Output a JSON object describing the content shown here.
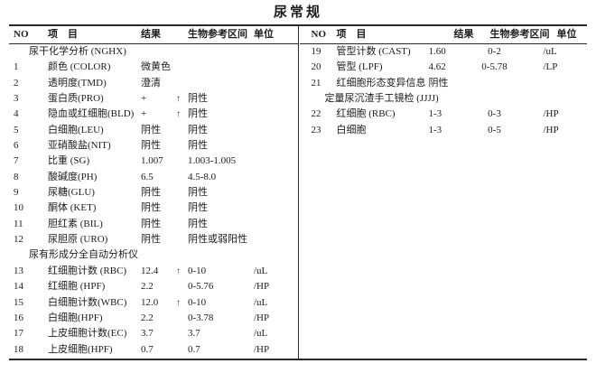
{
  "title": "尿常规",
  "columns": {
    "no": "NO",
    "item": "项　目",
    "result": "结果",
    "reference": "生物参考区间",
    "unit": "单位"
  },
  "left_table": {
    "rows": [
      {
        "section": "尿干化学分析 (NGHX)"
      },
      {
        "no": "1",
        "item": "颜色 (COLOR)",
        "result": "微黄色",
        "flag": "",
        "reference": "",
        "unit": ""
      },
      {
        "no": "2",
        "item": "透明度(TMD)",
        "result": "澄清",
        "flag": "",
        "reference": "",
        "unit": ""
      },
      {
        "no": "3",
        "item": "蛋白质(PRO)",
        "result": "+",
        "flag": "↑",
        "reference": "阴性",
        "unit": ""
      },
      {
        "no": "4",
        "item": "隐血或红细胞(BLD)",
        "result": "+",
        "flag": "↑",
        "reference": "阴性",
        "unit": ""
      },
      {
        "no": "5",
        "item": "白细胞(LEU)",
        "result": "阴性",
        "flag": "",
        "reference": "阴性",
        "unit": ""
      },
      {
        "no": "6",
        "item": "亚硝酸盐(NIT)",
        "result": "阴性",
        "flag": "",
        "reference": "阴性",
        "unit": ""
      },
      {
        "no": "7",
        "item": "比重 (SG)",
        "result": "1.007",
        "flag": "",
        "reference": "1.003-1.005",
        "unit": ""
      },
      {
        "no": "8",
        "item": "酸碱度(PH)",
        "result": "6.5",
        "flag": "",
        "reference": "4.5-8.0",
        "unit": ""
      },
      {
        "no": "9",
        "item": "尿糖(GLU)",
        "result": "阴性",
        "flag": "",
        "reference": "阴性",
        "unit": ""
      },
      {
        "no": "10",
        "item": "酮体 (KET)",
        "result": "阴性",
        "flag": "",
        "reference": "阴性",
        "unit": ""
      },
      {
        "no": "11",
        "item": "胆红素 (BIL)",
        "result": "阴性",
        "flag": "",
        "reference": "阴性",
        "unit": ""
      },
      {
        "no": "12",
        "item": "尿胆原 (URO)",
        "result": "阴性",
        "flag": "",
        "reference": "阴性或弱阳性",
        "unit": ""
      },
      {
        "section": "尿有形成分全自动分析仪"
      },
      {
        "no": "13",
        "item": "红细胞计数 (RBC)",
        "result": "12.4",
        "flag": "↑",
        "reference": "0-10",
        "unit": "/uL"
      },
      {
        "no": "14",
        "item": "红细胞 (HPF)",
        "result": "2.2",
        "flag": "",
        "reference": "0-5.76",
        "unit": "/HP"
      },
      {
        "no": "15",
        "item": "白细胞计数(WBC)",
        "result": "12.0",
        "flag": "↑",
        "reference": "0-10",
        "unit": "/uL"
      },
      {
        "no": "16",
        "item": "白细胞(HPF)",
        "result": "2.2",
        "flag": "",
        "reference": "0-3.78",
        "unit": "/HP"
      },
      {
        "no": "17",
        "item": "上皮细胞计数(EC)",
        "result": "3.7",
        "flag": "",
        "reference": "3.7",
        "unit": "/uL"
      },
      {
        "no": "18",
        "item": "上皮细胞(HPF)",
        "result": "0.7",
        "flag": "",
        "reference": "0.7",
        "unit": "/HP"
      }
    ]
  },
  "right_table": {
    "rows": [
      {
        "no": "19",
        "item": "管型计数 (CAST)",
        "result": "1.60",
        "flag": "",
        "reference": "0-2",
        "unit": "/uL"
      },
      {
        "no": "20",
        "item": "管型 (LPF)",
        "result": "4.62",
        "flag": "",
        "reference": "0-5.78",
        "unit": "/LP"
      },
      {
        "no": "21",
        "item": "红细胞形态变异信息",
        "result": "阴性",
        "flag": "",
        "reference": "",
        "unit": ""
      },
      {
        "section": "定量尿沉渣手工镜检 (JJJJ)"
      },
      {
        "no": "22",
        "item": "红细胞 (RBC)",
        "result": "1-3",
        "flag": "",
        "reference": "0-3",
        "unit": "/HP"
      },
      {
        "no": "23",
        "item": "白细胞",
        "result": "1-3",
        "flag": "",
        "reference": "0-5",
        "unit": "/HP"
      }
    ]
  }
}
